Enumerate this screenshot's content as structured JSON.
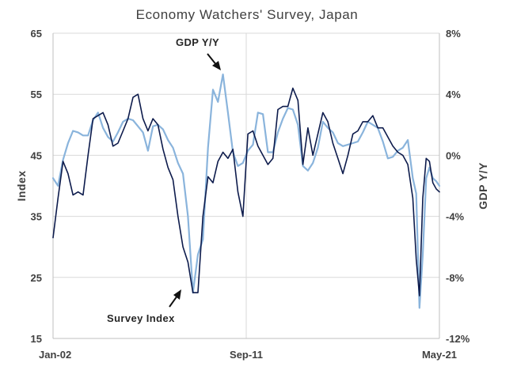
{
  "chart_data": {
    "type": "line",
    "title": "Economy Watchers' Survey, Japan",
    "ylabel": "Index",
    "y2label": "GDP  Y/Y",
    "ylim": [
      15,
      65
    ],
    "y2lim": [
      -12,
      8
    ],
    "yticks": [
      "65",
      "55",
      "45",
      "35",
      "25",
      "15"
    ],
    "y2ticks": [
      "8%",
      "4%",
      "0%",
      "-4%",
      "-8%",
      "-12%"
    ],
    "xticks": [
      "Jan-02",
      "Sep-11",
      "May-21"
    ],
    "x_range": [
      "2002-01",
      "2021-05"
    ],
    "grid": true,
    "legend": "none",
    "annotations": [
      {
        "text": "GDP  Y/Y",
        "series": "gdp"
      },
      {
        "text": "Survey Index",
        "series": "survey"
      }
    ],
    "series": [
      {
        "key": "survey",
        "axis": "left",
        "color": "#0d1b4c",
        "points": [
          [
            2002.0,
            31.5
          ],
          [
            2002.25,
            38.0
          ],
          [
            2002.5,
            44.0
          ],
          [
            2002.75,
            42.0
          ],
          [
            2003.0,
            38.5
          ],
          [
            2003.25,
            39.0
          ],
          [
            2003.5,
            38.5
          ],
          [
            2003.75,
            45.0
          ],
          [
            2004.0,
            51.0
          ],
          [
            2004.25,
            51.5
          ],
          [
            2004.5,
            52.0
          ],
          [
            2004.75,
            50.0
          ],
          [
            2005.0,
            46.5
          ],
          [
            2005.25,
            47.0
          ],
          [
            2005.5,
            49.0
          ],
          [
            2005.75,
            51.0
          ],
          [
            2006.0,
            54.5
          ],
          [
            2006.25,
            55.0
          ],
          [
            2006.5,
            51.0
          ],
          [
            2006.75,
            49.0
          ],
          [
            2007.0,
            51.0
          ],
          [
            2007.25,
            50.0
          ],
          [
            2007.5,
            46.0
          ],
          [
            2007.75,
            43.0
          ],
          [
            2008.0,
            41.0
          ],
          [
            2008.25,
            35.0
          ],
          [
            2008.5,
            30.0
          ],
          [
            2008.75,
            27.5
          ],
          [
            2009.0,
            22.5
          ],
          [
            2009.25,
            22.5
          ],
          [
            2009.5,
            35.0
          ],
          [
            2009.75,
            41.5
          ],
          [
            2010.0,
            40.5
          ],
          [
            2010.25,
            44.0
          ],
          [
            2010.5,
            45.5
          ],
          [
            2010.75,
            44.5
          ],
          [
            2011.0,
            46.0
          ],
          [
            2011.25,
            39.0
          ],
          [
            2011.5,
            35.0
          ],
          [
            2011.75,
            48.5
          ],
          [
            2012.0,
            49.0
          ],
          [
            2012.25,
            46.5
          ],
          [
            2012.5,
            45.0
          ],
          [
            2012.75,
            43.5
          ],
          [
            2013.0,
            44.5
          ],
          [
            2013.25,
            52.5
          ],
          [
            2013.5,
            53.0
          ],
          [
            2013.75,
            53.0
          ],
          [
            2014.0,
            56.0
          ],
          [
            2014.25,
            54.0
          ],
          [
            2014.5,
            43.5
          ],
          [
            2014.75,
            49.5
          ],
          [
            2015.0,
            45.0
          ],
          [
            2015.25,
            48.5
          ],
          [
            2015.5,
            52.0
          ],
          [
            2015.75,
            50.5
          ],
          [
            2016.0,
            47.0
          ],
          [
            2016.25,
            44.5
          ],
          [
            2016.5,
            42.0
          ],
          [
            2016.75,
            45.0
          ],
          [
            2017.0,
            48.5
          ],
          [
            2017.25,
            49.0
          ],
          [
            2017.5,
            50.5
          ],
          [
            2017.75,
            50.5
          ],
          [
            2018.0,
            51.5
          ],
          [
            2018.25,
            49.5
          ],
          [
            2018.5,
            49.5
          ],
          [
            2018.75,
            48.0
          ],
          [
            2019.0,
            46.5
          ],
          [
            2019.25,
            45.5
          ],
          [
            2019.5,
            45.0
          ],
          [
            2019.75,
            43.5
          ],
          [
            2020.0,
            38.0
          ],
          [
            2020.17,
            28.0
          ],
          [
            2020.33,
            22.0
          ],
          [
            2020.5,
            38.0
          ],
          [
            2020.67,
            44.5
          ],
          [
            2020.83,
            44.0
          ],
          [
            2021.0,
            40.5
          ],
          [
            2021.17,
            39.5
          ],
          [
            2021.33,
            39.0
          ]
        ]
      },
      {
        "key": "gdp",
        "axis": "right",
        "color": "#8ab4dc",
        "points": [
          [
            2002.0,
            -1.5
          ],
          [
            2002.25,
            -2.0
          ],
          [
            2002.5,
            -0.3
          ],
          [
            2002.75,
            0.8
          ],
          [
            2003.0,
            1.6
          ],
          [
            2003.25,
            1.5
          ],
          [
            2003.5,
            1.3
          ],
          [
            2003.75,
            1.3
          ],
          [
            2004.0,
            2.3
          ],
          [
            2004.25,
            2.8
          ],
          [
            2004.5,
            1.8
          ],
          [
            2004.75,
            1.2
          ],
          [
            2005.0,
            0.9
          ],
          [
            2005.25,
            1.5
          ],
          [
            2005.5,
            2.2
          ],
          [
            2005.75,
            2.4
          ],
          [
            2006.0,
            2.3
          ],
          [
            2006.25,
            1.9
          ],
          [
            2006.5,
            1.5
          ],
          [
            2006.75,
            0.3
          ],
          [
            2007.0,
            1.9
          ],
          [
            2007.25,
            2.0
          ],
          [
            2007.5,
            1.7
          ],
          [
            2007.75,
            1.0
          ],
          [
            2008.0,
            0.5
          ],
          [
            2008.25,
            -0.5
          ],
          [
            2008.5,
            -1.2
          ],
          [
            2008.75,
            -4.0
          ],
          [
            2009.0,
            -9.0
          ],
          [
            2009.25,
            -6.5
          ],
          [
            2009.5,
            -5.5
          ],
          [
            2009.75,
            0.5
          ],
          [
            2010.0,
            4.3
          ],
          [
            2010.25,
            3.5
          ],
          [
            2010.5,
            5.3
          ],
          [
            2010.75,
            2.8
          ],
          [
            2011.0,
            0.2
          ],
          [
            2011.25,
            -0.7
          ],
          [
            2011.5,
            -0.5
          ],
          [
            2011.75,
            0.3
          ],
          [
            2012.0,
            0.7
          ],
          [
            2012.25,
            2.8
          ],
          [
            2012.5,
            2.7
          ],
          [
            2012.75,
            0.2
          ],
          [
            2013.0,
            0.2
          ],
          [
            2013.25,
            1.5
          ],
          [
            2013.5,
            2.4
          ],
          [
            2013.75,
            3.1
          ],
          [
            2014.0,
            3.0
          ],
          [
            2014.25,
            2.0
          ],
          [
            2014.5,
            -0.7
          ],
          [
            2014.75,
            -1.0
          ],
          [
            2015.0,
            -0.5
          ],
          [
            2015.25,
            0.5
          ],
          [
            2015.5,
            2.2
          ],
          [
            2015.75,
            1.8
          ],
          [
            2016.0,
            1.5
          ],
          [
            2016.25,
            0.8
          ],
          [
            2016.5,
            0.6
          ],
          [
            2016.75,
            0.7
          ],
          [
            2017.0,
            0.8
          ],
          [
            2017.25,
            0.9
          ],
          [
            2017.5,
            1.5
          ],
          [
            2017.75,
            2.2
          ],
          [
            2018.0,
            2.0
          ],
          [
            2018.25,
            1.8
          ],
          [
            2018.5,
            0.9
          ],
          [
            2018.75,
            -0.2
          ],
          [
            2019.0,
            -0.1
          ],
          [
            2019.25,
            0.3
          ],
          [
            2019.5,
            0.5
          ],
          [
            2019.75,
            1.0
          ],
          [
            2020.0,
            -1.5
          ],
          [
            2020.17,
            -2.5
          ],
          [
            2020.33,
            -10.0
          ],
          [
            2020.5,
            -6.5
          ],
          [
            2020.67,
            -1.5
          ],
          [
            2020.83,
            -0.8
          ],
          [
            2021.0,
            -1.5
          ],
          [
            2021.17,
            -1.7
          ],
          [
            2021.33,
            -2.0
          ]
        ]
      }
    ]
  }
}
